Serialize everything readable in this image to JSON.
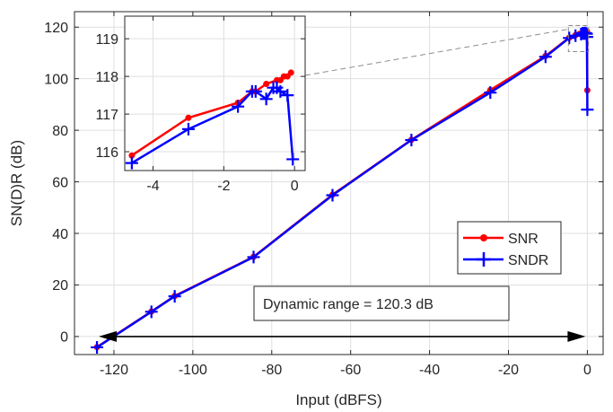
{
  "chart_data": [
    {
      "type": "line",
      "title": "",
      "xlabel": "Input (dBFS)",
      "ylabel": "SN(D)R (dB)",
      "xlim": [
        -130,
        4
      ],
      "ylim": [
        -7,
        126
      ],
      "xticks": [
        -120,
        -100,
        -80,
        -60,
        -40,
        -20,
        0
      ],
      "yticks": [
        0,
        20,
        40,
        60,
        80,
        100,
        120
      ],
      "xtick_labels": [
        "-120",
        "-100",
        "-80",
        "-60",
        "-40",
        "-20",
        "0"
      ],
      "ytick_labels": [
        "0",
        "20",
        "40",
        "60",
        "80",
        "100",
        "120"
      ],
      "grid": true,
      "legend_position": "lower-right",
      "series": [
        {
          "name": "SNR",
          "color": "#ff0000",
          "marker": "dot",
          "x": [
            -124.3,
            -110.5,
            -104.6,
            -84.6,
            -64.6,
            -44.6,
            -24.6,
            -10.6,
            -4.6,
            -3,
            -2,
            -1.3,
            -1.2,
            -0.8,
            -0.5,
            -0.4,
            -0.3,
            -0.2,
            -0.1,
            0
          ],
          "y": [
            -4.1,
            9.7,
            15.7,
            30.9,
            55.0,
            76.3,
            95.6,
            108.8,
            115.9,
            116.9,
            117.4,
            117.7,
            117.8,
            118.0,
            118.1,
            118.2,
            118.2,
            118.3,
            118.4,
            95.5
          ]
        },
        {
          "name": "SNDR",
          "color": "#0000ff",
          "marker": "plus",
          "x": [
            -124.3,
            -110.5,
            -104.6,
            -84.6,
            -64.6,
            -44.6,
            -24.6,
            -10.6,
            -4.6,
            -3,
            -1.6,
            -1.2,
            -1.1,
            -0.8,
            -0.6,
            -0.5,
            -0.4,
            -0.2,
            -0.1,
            0
          ],
          "y": [
            -4.2,
            9.6,
            15.6,
            30.8,
            54.8,
            76.2,
            94.6,
            108.5,
            115.8,
            116.7,
            117.3,
            117.6,
            117.6,
            117.5,
            117.7,
            117.7,
            117.6,
            117.4,
            116.2,
            88.0
          ]
        }
      ],
      "annotations": [
        {
          "text": "Dynamic range = 120.3 dB"
        }
      ]
    },
    {
      "type": "line",
      "title": "",
      "role": "inset zoom",
      "xlim": [
        -4.8,
        0.3
      ],
      "ylim": [
        115.5,
        119.6
      ],
      "xticks": [
        -4,
        -2,
        0
      ],
      "yticks": [
        116,
        117,
        118,
        119
      ],
      "xtick_labels": [
        "-4",
        "-2",
        "0"
      ],
      "ytick_labels": [
        "116",
        "117",
        "118",
        "119"
      ],
      "grid": true,
      "series": [
        {
          "color": "#ff0000",
          "marker": "dot",
          "x": [
            -4.6,
            -3,
            -1.6,
            -1.2,
            -1.1,
            -0.8,
            -0.5,
            -0.4,
            -0.3,
            -0.2,
            -0.1
          ],
          "y": [
            115.9,
            116.9,
            117.3,
            117.6,
            117.6,
            117.8,
            117.9,
            117.9,
            118.0,
            118.0,
            118.1
          ]
        },
        {
          "color": "#0000ff",
          "marker": "plus",
          "x": [
            -4.6,
            -3,
            -1.6,
            -1.2,
            -1.1,
            -0.8,
            -0.6,
            -0.5,
            -0.4,
            -0.2,
            -0.05
          ],
          "y": [
            115.7,
            116.6,
            117.2,
            117.6,
            117.6,
            117.4,
            117.7,
            117.7,
            117.6,
            117.5,
            115.8
          ]
        }
      ]
    }
  ]
}
